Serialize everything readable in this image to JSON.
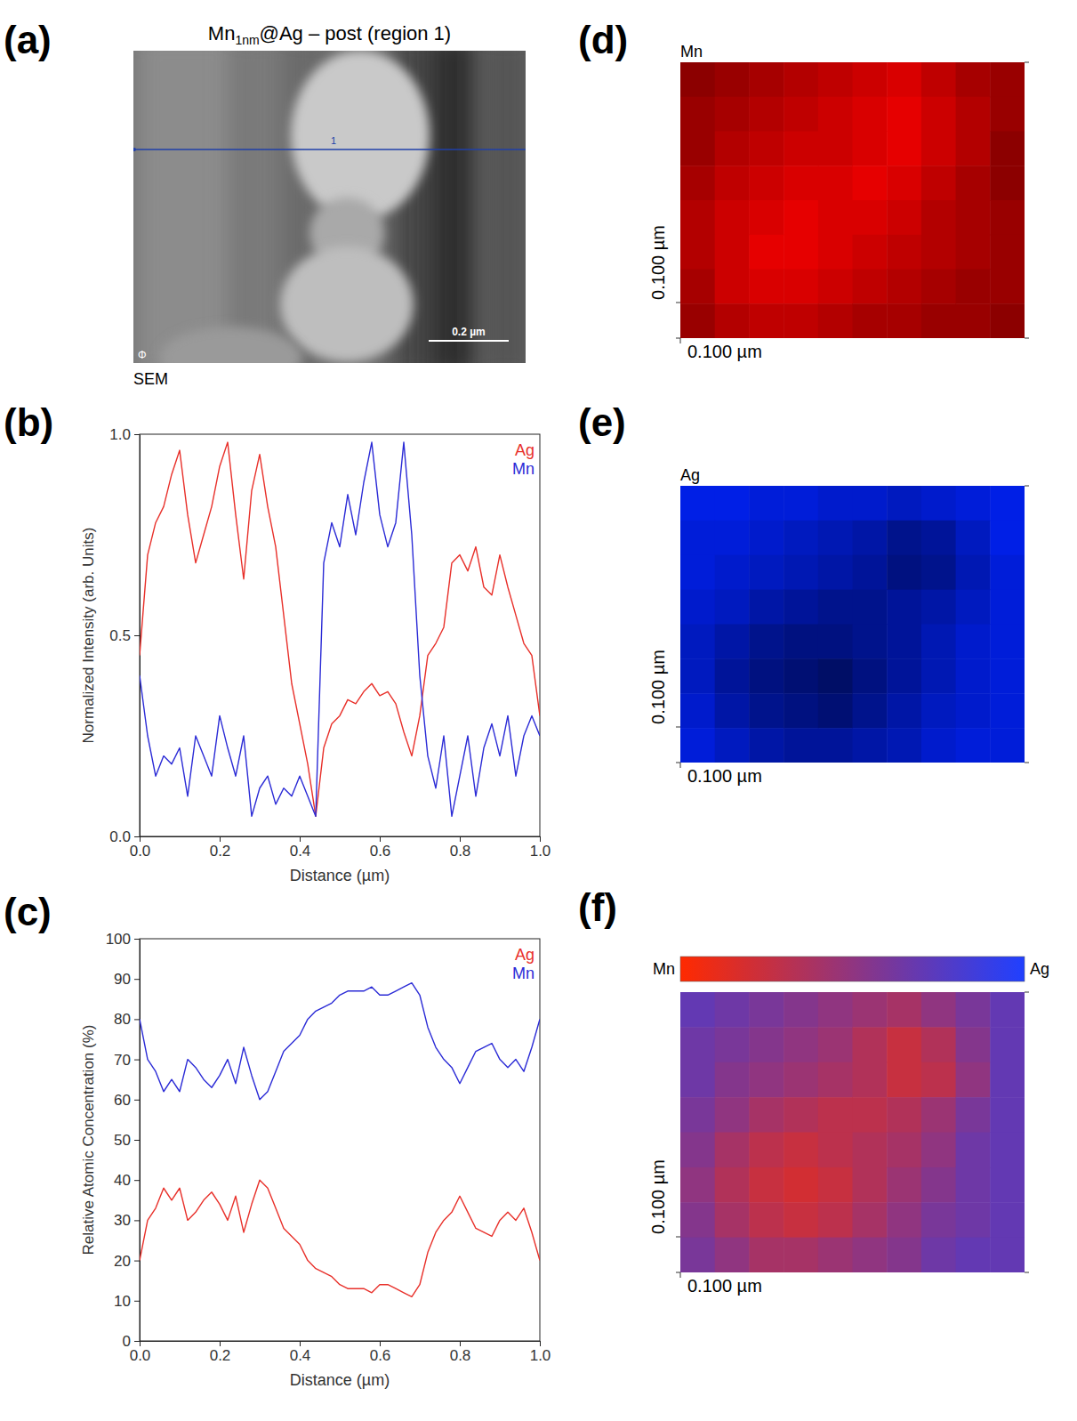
{
  "chart_data": [
    {
      "type": "image",
      "panel": "(a)",
      "title": "Mn1nm@Ag – post (region 1)",
      "line_label": "1",
      "scale_bar": "0.2 µm",
      "logo": "Φ",
      "caption": "SEM"
    },
    {
      "type": "line",
      "panel": "(b)",
      "xlabel": "Distance (µm)",
      "ylabel": "Normalized Intensity (arb. Units)",
      "xlim": [
        0,
        1
      ],
      "ylim": [
        0,
        1
      ],
      "xticks": [
        {
          "value": 0,
          "label": "0.0"
        },
        {
          "value": 0.2,
          "label": "0.2"
        },
        {
          "value": 0.4,
          "label": "0.4"
        },
        {
          "value": 0.6,
          "label": "0.6"
        },
        {
          "value": 0.8,
          "label": "0.8"
        },
        {
          "value": 1,
          "label": "1.0"
        }
      ],
      "yticks": [
        {
          "value": 0,
          "label": "0.0"
        },
        {
          "value": 0.5,
          "label": "0.5"
        },
        {
          "value": 1,
          "label": "1.0"
        }
      ],
      "grid": false,
      "legend": "top-right",
      "x": [
        0,
        0.02,
        0.04,
        0.06,
        0.08,
        0.1,
        0.12,
        0.14,
        0.16,
        0.18,
        0.2,
        0.22,
        0.24,
        0.26,
        0.28,
        0.3,
        0.32,
        0.34,
        0.36,
        0.38,
        0.4,
        0.42,
        0.44,
        0.46,
        0.48,
        0.5,
        0.52,
        0.54,
        0.56,
        0.58,
        0.6,
        0.62,
        0.64,
        0.66,
        0.68,
        0.7,
        0.72,
        0.74,
        0.76,
        0.78,
        0.8,
        0.82,
        0.84,
        0.86,
        0.88,
        0.9,
        0.92,
        0.94,
        0.96,
        0.98,
        1
      ],
      "series": [
        {
          "name": "Ag",
          "color": "#e8302a",
          "values": [
            0.45,
            0.7,
            0.78,
            0.82,
            0.9,
            0.96,
            0.8,
            0.68,
            0.75,
            0.82,
            0.92,
            0.98,
            0.8,
            0.64,
            0.86,
            0.95,
            0.82,
            0.72,
            0.55,
            0.38,
            0.28,
            0.18,
            0.05,
            0.22,
            0.28,
            0.3,
            0.34,
            0.33,
            0.36,
            0.38,
            0.35,
            0.36,
            0.33,
            0.26,
            0.2,
            0.3,
            0.45,
            0.48,
            0.52,
            0.68,
            0.7,
            0.66,
            0.72,
            0.62,
            0.6,
            0.7,
            0.62,
            0.55,
            0.48,
            0.45,
            0.3
          ]
        },
        {
          "name": "Mn",
          "color": "#2b2bd6",
          "values": [
            0.4,
            0.25,
            0.15,
            0.2,
            0.18,
            0.22,
            0.1,
            0.25,
            0.2,
            0.15,
            0.3,
            0.22,
            0.15,
            0.25,
            0.05,
            0.12,
            0.15,
            0.08,
            0.12,
            0.1,
            0.15,
            0.1,
            0.05,
            0.68,
            0.78,
            0.72,
            0.85,
            0.75,
            0.88,
            0.98,
            0.8,
            0.72,
            0.78,
            0.98,
            0.75,
            0.4,
            0.2,
            0.12,
            0.25,
            0.05,
            0.15,
            0.25,
            0.1,
            0.22,
            0.28,
            0.2,
            0.3,
            0.15,
            0.25,
            0.3,
            0.25
          ]
        }
      ]
    },
    {
      "type": "line",
      "panel": "(c)",
      "xlabel": "Distance (µm)",
      "ylabel": "Relative Atomic Concentration (%)",
      "xlim": [
        0,
        1
      ],
      "ylim": [
        0,
        100
      ],
      "xticks": [
        {
          "value": 0,
          "label": "0.0"
        },
        {
          "value": 0.2,
          "label": "0.2"
        },
        {
          "value": 0.4,
          "label": "0.4"
        },
        {
          "value": 0.6,
          "label": "0.6"
        },
        {
          "value": 0.8,
          "label": "0.8"
        },
        {
          "value": 1,
          "label": "1.0"
        }
      ],
      "yticks": [
        0,
        10,
        20,
        30,
        40,
        50,
        60,
        70,
        80,
        90,
        100
      ],
      "grid": false,
      "legend": "top-right",
      "x": [
        0,
        0.02,
        0.04,
        0.06,
        0.08,
        0.1,
        0.12,
        0.14,
        0.16,
        0.18,
        0.2,
        0.22,
        0.24,
        0.26,
        0.28,
        0.3,
        0.32,
        0.34,
        0.36,
        0.38,
        0.4,
        0.42,
        0.44,
        0.46,
        0.48,
        0.5,
        0.52,
        0.54,
        0.56,
        0.58,
        0.6,
        0.62,
        0.64,
        0.66,
        0.68,
        0.7,
        0.72,
        0.74,
        0.76,
        0.78,
        0.8,
        0.82,
        0.84,
        0.86,
        0.88,
        0.9,
        0.92,
        0.94,
        0.96,
        0.98,
        1
      ],
      "series": [
        {
          "name": "Ag",
          "color": "#e8302a",
          "values": [
            20,
            30,
            33,
            38,
            35,
            38,
            30,
            32,
            35,
            37,
            34,
            30,
            36,
            27,
            34,
            40,
            38,
            33,
            28,
            26,
            24,
            20,
            18,
            17,
            16,
            14,
            13,
            13,
            13,
            12,
            14,
            14,
            13,
            12,
            11,
            14,
            22,
            27,
            30,
            32,
            36,
            32,
            28,
            27,
            26,
            30,
            32,
            30,
            33,
            27,
            20
          ]
        },
        {
          "name": "Mn",
          "color": "#2b2bd6",
          "values": [
            80,
            70,
            67,
            62,
            65,
            62,
            70,
            68,
            65,
            63,
            66,
            70,
            64,
            73,
            66,
            60,
            62,
            67,
            72,
            74,
            76,
            80,
            82,
            83,
            84,
            86,
            87,
            87,
            87,
            88,
            86,
            86,
            87,
            88,
            89,
            86,
            78,
            73,
            70,
            68,
            64,
            68,
            72,
            73,
            74,
            70,
            68,
            70,
            67,
            73,
            80
          ]
        }
      ]
    },
    {
      "type": "heatmap",
      "panel": "(d)",
      "title": "Mn",
      "xlabel": "0.100 µm",
      "ylabel": "0.100 µm",
      "zlim": [
        0,
        1
      ],
      "color": "#ff0000",
      "cells": [
        [
          0.55,
          0.6,
          0.65,
          0.7,
          0.75,
          0.8,
          0.85,
          0.75,
          0.65,
          0.6
        ],
        [
          0.6,
          0.65,
          0.7,
          0.75,
          0.8,
          0.85,
          0.9,
          0.8,
          0.7,
          0.6
        ],
        [
          0.6,
          0.7,
          0.75,
          0.8,
          0.8,
          0.85,
          0.9,
          0.8,
          0.7,
          0.55
        ],
        [
          0.65,
          0.75,
          0.8,
          0.85,
          0.85,
          0.9,
          0.85,
          0.75,
          0.65,
          0.55
        ],
        [
          0.7,
          0.8,
          0.85,
          0.9,
          0.85,
          0.85,
          0.8,
          0.7,
          0.65,
          0.6
        ],
        [
          0.7,
          0.8,
          0.9,
          0.9,
          0.85,
          0.8,
          0.75,
          0.7,
          0.65,
          0.6
        ],
        [
          0.65,
          0.8,
          0.85,
          0.85,
          0.8,
          0.75,
          0.7,
          0.65,
          0.6,
          0.6
        ],
        [
          0.6,
          0.7,
          0.75,
          0.75,
          0.7,
          0.65,
          0.65,
          0.6,
          0.6,
          0.55
        ]
      ]
    },
    {
      "type": "heatmap",
      "panel": "(e)",
      "title": "Ag",
      "xlabel": "0.100 µm",
      "ylabel": "0.100 µm",
      "zlim": [
        0,
        1
      ],
      "color": "#0022ff",
      "cells": [
        [
          0.9,
          0.9,
          0.85,
          0.85,
          0.8,
          0.8,
          0.75,
          0.8,
          0.85,
          0.9
        ],
        [
          0.85,
          0.85,
          0.8,
          0.75,
          0.7,
          0.65,
          0.55,
          0.6,
          0.75,
          0.9
        ],
        [
          0.85,
          0.8,
          0.75,
          0.7,
          0.65,
          0.6,
          0.5,
          0.55,
          0.7,
          0.85
        ],
        [
          0.8,
          0.75,
          0.65,
          0.6,
          0.55,
          0.55,
          0.6,
          0.65,
          0.75,
          0.85
        ],
        [
          0.75,
          0.65,
          0.55,
          0.5,
          0.5,
          0.55,
          0.6,
          0.7,
          0.8,
          0.85
        ],
        [
          0.75,
          0.6,
          0.5,
          0.45,
          0.4,
          0.5,
          0.6,
          0.7,
          0.8,
          0.85
        ],
        [
          0.8,
          0.65,
          0.55,
          0.5,
          0.45,
          0.55,
          0.65,
          0.75,
          0.8,
          0.85
        ],
        [
          0.85,
          0.75,
          0.65,
          0.6,
          0.6,
          0.65,
          0.7,
          0.8,
          0.85,
          0.85
        ]
      ]
    },
    {
      "type": "heatmap",
      "panel": "(f)",
      "xlabel": "0.100 µm",
      "ylabel": "0.100 µm",
      "zlim": [
        0,
        1
      ],
      "colors": [
        "#ff2a00",
        "#2040ff"
      ],
      "colorbar": {
        "labels": [
          "Mn",
          "Ag"
        ]
      },
      "cells": [
        [
          0.7,
          0.65,
          0.6,
          0.55,
          0.5,
          0.45,
          0.4,
          0.5,
          0.6,
          0.7
        ],
        [
          0.65,
          0.6,
          0.55,
          0.5,
          0.45,
          0.35,
          0.25,
          0.35,
          0.55,
          0.7
        ],
        [
          0.65,
          0.55,
          0.5,
          0.45,
          0.4,
          0.35,
          0.25,
          0.3,
          0.5,
          0.7
        ],
        [
          0.6,
          0.5,
          0.4,
          0.35,
          0.3,
          0.3,
          0.35,
          0.45,
          0.6,
          0.7
        ],
        [
          0.55,
          0.4,
          0.3,
          0.25,
          0.3,
          0.35,
          0.4,
          0.5,
          0.65,
          0.7
        ],
        [
          0.5,
          0.35,
          0.25,
          0.2,
          0.25,
          0.35,
          0.45,
          0.55,
          0.65,
          0.7
        ],
        [
          0.55,
          0.4,
          0.3,
          0.25,
          0.3,
          0.4,
          0.5,
          0.6,
          0.65,
          0.7
        ],
        [
          0.6,
          0.5,
          0.4,
          0.4,
          0.45,
          0.5,
          0.55,
          0.65,
          0.7,
          0.7
        ]
      ]
    }
  ]
}
